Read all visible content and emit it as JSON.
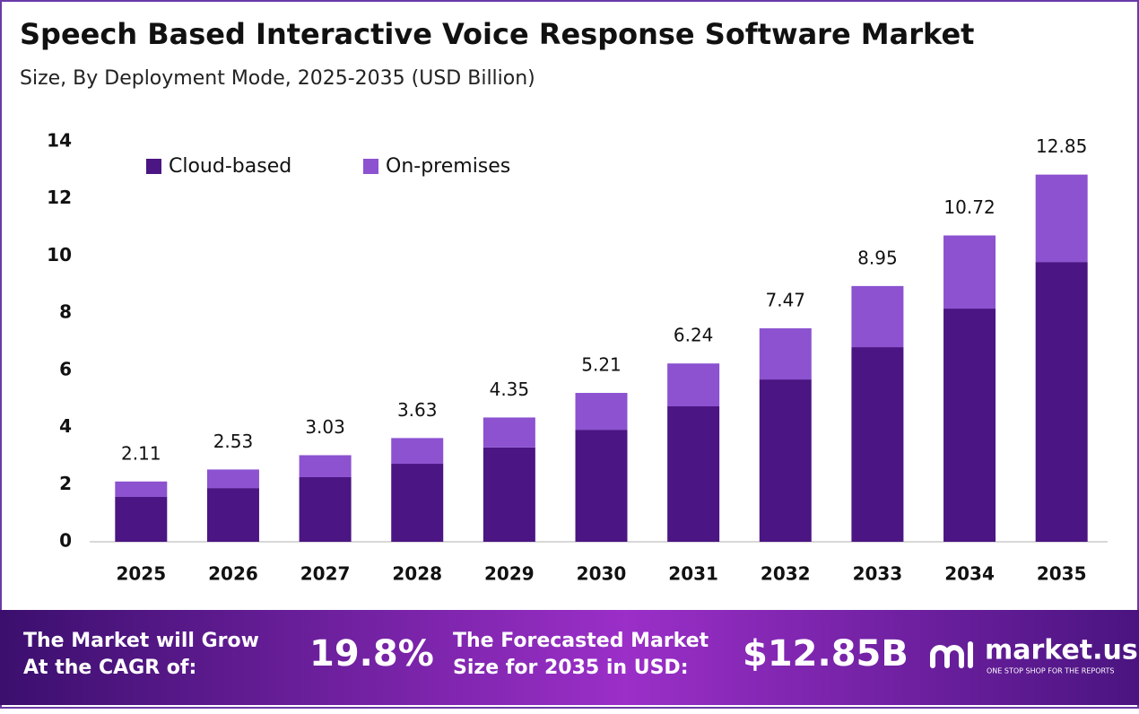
{
  "chart_data": {
    "type": "stacked_bar",
    "title": "Speech Based Interactive Voice Response Software Market",
    "subtitle": "Size, By Deployment Mode, 2025-2035 (USD Billion)",
    "categories": [
      "2025",
      "2026",
      "2027",
      "2028",
      "2029",
      "2030",
      "2031",
      "2032",
      "2033",
      "2034",
      "2035"
    ],
    "series": [
      {
        "name": "Cloud-based",
        "color": "#4b1583",
        "values": [
          1.57,
          1.88,
          2.26,
          2.73,
          3.3,
          3.92,
          4.74,
          5.68,
          6.81,
          8.16,
          9.79
        ]
      },
      {
        "name": "On-premises",
        "color": "#8c52d0",
        "values": [
          0.54,
          0.65,
          0.77,
          0.9,
          1.05,
          1.29,
          1.5,
          1.79,
          2.14,
          2.56,
          3.06
        ]
      }
    ],
    "totals": [
      2.11,
      2.53,
      3.03,
      3.63,
      4.35,
      5.21,
      6.24,
      7.47,
      8.95,
      10.72,
      12.85
    ],
    "ylim": [
      0,
      14
    ],
    "yticks": [
      0,
      2,
      4,
      6,
      8,
      10,
      12,
      14
    ],
    "grid": false,
    "legend": "top-left"
  },
  "footer": {
    "cagr_label": [
      "The Market will Grow",
      "At the CAGR of:"
    ],
    "cagr_value": "19.8%",
    "forecast_label": [
      "The Forecasted Market",
      "Size for 2035 in USD:"
    ],
    "forecast_value": "$12.85B",
    "brand": "market.us",
    "tagline": "ONE STOP SHOP FOR THE REPORTS"
  }
}
